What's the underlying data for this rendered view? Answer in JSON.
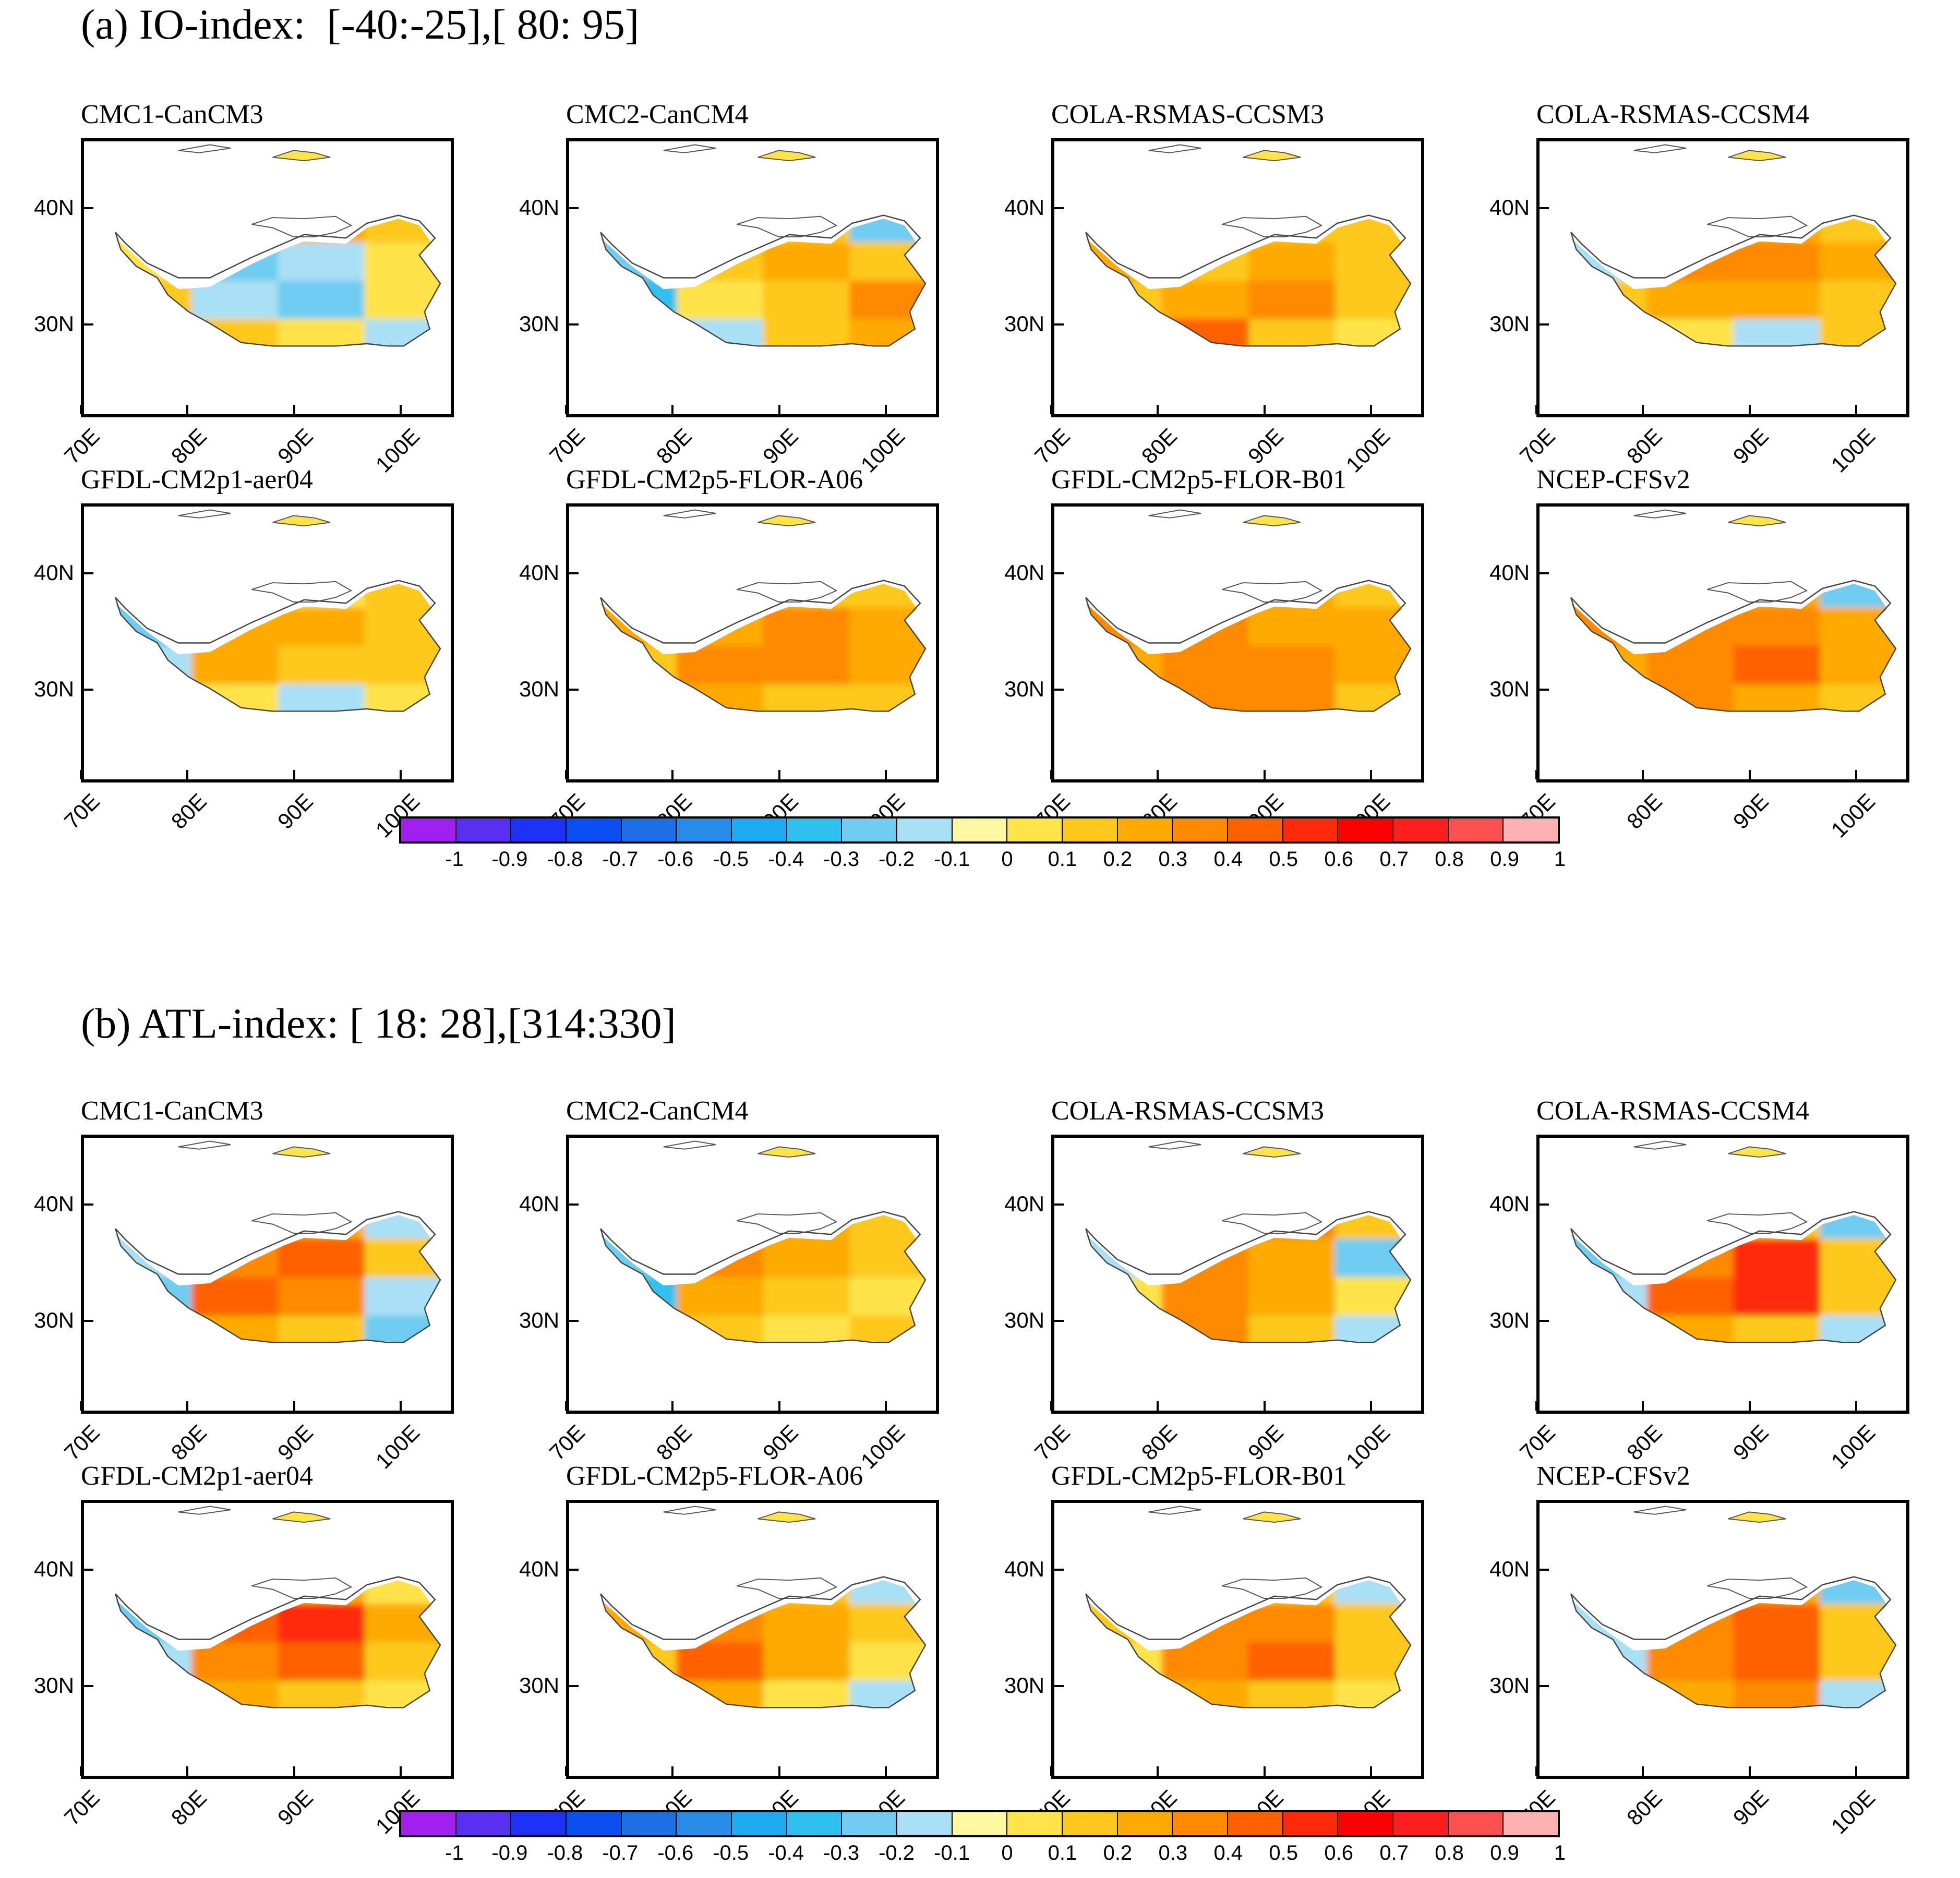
{
  "sections": [
    {
      "title": "(a) IO-index:  [-40:-25],[ 80: 95]",
      "panels": [
        {
          "name": "CMC1-CanCM3",
          "pattern": [
            1,
            2,
            3,
            2,
            1,
            -2,
            -1,
            1,
            2,
            -1,
            -2,
            1,
            3,
            2,
            1,
            -1
          ]
        },
        {
          "name": "CMC2-CanCM4",
          "pattern": [
            3,
            3,
            2,
            -2,
            -2,
            2,
            3,
            2,
            -3,
            1,
            2,
            4,
            1,
            -1,
            2,
            3
          ]
        },
        {
          "name": "COLA-RSMAS-CCSM3",
          "pattern": [
            2,
            3,
            2,
            2,
            3,
            2,
            3,
            2,
            2,
            3,
            4,
            2,
            3,
            5,
            2,
            1
          ]
        },
        {
          "name": "COLA-RSMAS-CCSM4",
          "pattern": [
            2,
            3,
            3,
            2,
            -1,
            4,
            4,
            3,
            2,
            3,
            3,
            2,
            2,
            1,
            -1,
            2
          ]
        },
        {
          "name": "GFDL-CM2p1-aer04",
          "pattern": [
            -2,
            -1,
            1,
            2,
            -2,
            3,
            3,
            2,
            -1,
            3,
            2,
            2,
            1,
            1,
            -1,
            1
          ]
        },
        {
          "name": "GFDL-CM2p5-FLOR-A06",
          "pattern": [
            3,
            3,
            2,
            2,
            3,
            3,
            4,
            3,
            2,
            4,
            4,
            3,
            3,
            3,
            2,
            2
          ]
        },
        {
          "name": "GFDL-CM2p5-FLOR-B01",
          "pattern": [
            4,
            4,
            3,
            2,
            4,
            4,
            3,
            3,
            3,
            4,
            4,
            3,
            3,
            4,
            4,
            2
          ]
        },
        {
          "name": "NCEP-CFSv2",
          "pattern": [
            3,
            3,
            3,
            -2,
            4,
            4,
            4,
            3,
            3,
            4,
            5,
            3,
            4,
            4,
            3,
            2
          ]
        }
      ]
    },
    {
      "title": "(b) ATL-index: [ 18: 28],[314:330]",
      "panels": [
        {
          "name": "CMC1-CanCM3",
          "pattern": [
            -2,
            2,
            3,
            -1,
            -1,
            4,
            5,
            2,
            -2,
            5,
            4,
            -1,
            1,
            3,
            2,
            -2
          ]
        },
        {
          "name": "CMC2-CanCM4",
          "pattern": [
            -2,
            2,
            3,
            2,
            -2,
            4,
            3,
            2,
            -3,
            3,
            2,
            1,
            -1,
            2,
            1,
            2
          ]
        },
        {
          "name": "COLA-RSMAS-CCSM3",
          "pattern": [
            -1,
            3,
            4,
            2,
            -1,
            4,
            3,
            -2,
            1,
            4,
            3,
            1,
            2,
            4,
            2,
            -1
          ]
        },
        {
          "name": "COLA-RSMAS-CCSM4",
          "pattern": [
            -2,
            -1,
            2,
            -2,
            -2,
            4,
            6,
            2,
            -1,
            5,
            6,
            2,
            1,
            3,
            2,
            -1
          ]
        },
        {
          "name": "GFDL-CM2p1-aer04",
          "pattern": [
            -2,
            3,
            3,
            1,
            -2,
            5,
            6,
            3,
            -1,
            4,
            5,
            2,
            1,
            3,
            2,
            1
          ]
        },
        {
          "name": "GFDL-CM2p5-FLOR-A06",
          "pattern": [
            -1,
            2,
            2,
            -1,
            3,
            4,
            3,
            2,
            2,
            5,
            3,
            1,
            2,
            3,
            1,
            -1
          ]
        },
        {
          "name": "GFDL-CM2p5-FLOR-B01",
          "pattern": [
            -1,
            2,
            2,
            -1,
            2,
            4,
            4,
            2,
            1,
            4,
            5,
            2,
            1,
            3,
            2,
            1
          ]
        },
        {
          "name": "NCEP-CFSv2",
          "pattern": [
            -1,
            2,
            3,
            -2,
            -1,
            4,
            5,
            2,
            -1,
            4,
            5,
            2,
            1,
            3,
            4,
            -1
          ]
        }
      ]
    }
  ],
  "axes": {
    "y_ticks": [
      "40N",
      "30N"
    ],
    "x_ticks": [
      "70E",
      "80E",
      "90E",
      "100E"
    ],
    "lon_range": [
      70,
      105
    ],
    "lat_range": [
      22,
      46
    ]
  },
  "colorbar": {
    "labels": [
      "-1",
      "-0.9",
      "-0.8",
      "-0.7",
      "-0.6",
      "-0.5",
      "-0.4",
      "-0.3",
      "-0.2",
      "-0.1",
      "0",
      "0.1",
      "0.2",
      "0.3",
      "0.4",
      "0.5",
      "0.6",
      "0.7",
      "0.8",
      "0.9",
      "1"
    ],
    "colors": [
      "#a020f0",
      "#5a30f0",
      "#1e32f5",
      "#0a50f0",
      "#1e6ee6",
      "#2a8ce6",
      "#1eaaf0",
      "#30c0f0",
      "#70ccf0",
      "#aae0f5",
      "#fff8a0",
      "#ffe34a",
      "#ffc81e",
      "#ffaa00",
      "#ff8a00",
      "#ff6000",
      "#ff2a0a",
      "#ff0000",
      "#ff1e1e",
      "#ff5050",
      "#ffb0b0"
    ]
  }
}
